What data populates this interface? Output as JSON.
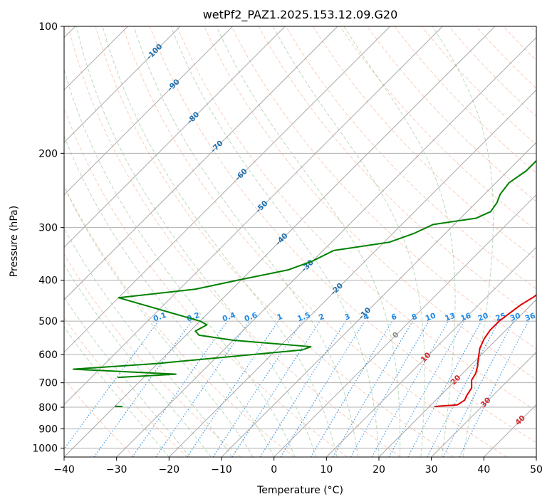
{
  "chart_data": {
    "type": "skew-t",
    "title": "wetPf2_PAZ1.2025.153.12.09.G20",
    "xlabel": "Temperature (°C)",
    "ylabel": "Pressure (hPa)",
    "xlim": [
      -40,
      50
    ],
    "ylim": [
      1050,
      100
    ],
    "y_scale": "log",
    "grid": true,
    "x_ticks": [
      -40,
      -30,
      -20,
      -10,
      0,
      10,
      20,
      30,
      40,
      50
    ],
    "x_tick_labels": [
      "−40",
      "−30",
      "−20",
      "−10",
      "0",
      "10",
      "20",
      "30",
      "40",
      "50"
    ],
    "y_ticks": [
      100,
      200,
      300,
      400,
      500,
      600,
      700,
      800,
      900,
      1000
    ],
    "y_tick_labels": [
      "100",
      "200",
      "300",
      "400",
      "500",
      "600",
      "700",
      "800",
      "900",
      "1000"
    ],
    "isotherm_labels": {
      "color": "#1f6fae",
      "items": [
        {
          "text": "-100",
          "p": 115
        },
        {
          "text": "-90",
          "p": 138
        },
        {
          "text": "-80",
          "p": 165
        },
        {
          "text": "-70",
          "p": 193
        },
        {
          "text": "-60",
          "p": 225
        },
        {
          "text": "-50",
          "p": 268
        },
        {
          "text": "-40",
          "p": 320
        },
        {
          "text": "-30",
          "p": 370
        },
        {
          "text": "-20",
          "p": 420
        },
        {
          "text": "-10",
          "p": 480
        }
      ]
    },
    "isotherm_labels_positive": {
      "color": "#d62728",
      "items": [
        {
          "text": "0",
          "p": 540,
          "color": "#888888"
        },
        {
          "text": "10",
          "p": 610
        },
        {
          "text": "20",
          "p": 690
        },
        {
          "text": "30",
          "p": 780
        },
        {
          "text": "40",
          "p": 860
        }
      ]
    },
    "mixing_ratio_labels": {
      "color": "#1e88e5",
      "items": [
        "0.1",
        "0.2",
        "0.4",
        "0.6",
        "1",
        "1.5",
        "2",
        "3",
        "4",
        "6",
        "8",
        "10",
        "13",
        "16",
        "20",
        "25",
        "30",
        "36"
      ]
    },
    "series": [
      {
        "name": "Temperature",
        "color": "#e00000",
        "points": [
          [
            7.5,
            100
          ],
          [
            4,
            108
          ],
          [
            2.8,
            118
          ],
          [
            3.5,
            130
          ],
          [
            5.5,
            140
          ],
          [
            6.5,
            152
          ],
          [
            6.5,
            165
          ],
          [
            5.5,
            178
          ],
          [
            5.8,
            188
          ],
          [
            7.5,
            200
          ],
          [
            9.5,
            215
          ],
          [
            11.5,
            235
          ],
          [
            12.5,
            255
          ],
          [
            13,
            270
          ],
          [
            14,
            290
          ],
          [
            15,
            305
          ],
          [
            16,
            325
          ],
          [
            17,
            345
          ],
          [
            18.2,
            362
          ],
          [
            18.5,
            380
          ],
          [
            19,
            398
          ],
          [
            19.3,
            418
          ],
          [
            19,
            438
          ],
          [
            18,
            458
          ],
          [
            17.5,
            478
          ],
          [
            17,
            500
          ],
          [
            17,
            525
          ],
          [
            17.5,
            550
          ],
          [
            18.5,
            580
          ],
          [
            20,
            610
          ],
          [
            21.5,
            640
          ],
          [
            22.5,
            665
          ],
          [
            23,
            690
          ],
          [
            24.5,
            720
          ],
          [
            25,
            750
          ],
          [
            25.5,
            770
          ],
          [
            25,
            790
          ],
          [
            22,
            795
          ],
          [
            21,
            797
          ]
        ]
      },
      {
        "name": "Dewpoint",
        "color": "#008000",
        "points": [
          [
            0.2,
            100
          ],
          [
            0,
            110
          ],
          [
            0.3,
            125
          ],
          [
            -1,
            140
          ],
          [
            -3,
            155
          ],
          [
            -4.5,
            170
          ],
          [
            -3.5,
            182
          ],
          [
            -5,
            195
          ],
          [
            -6.5,
            205
          ],
          [
            -6.5,
            220
          ],
          [
            -7.5,
            235
          ],
          [
            -7,
            250
          ],
          [
            -6,
            262
          ],
          [
            -5.5,
            275
          ],
          [
            -7,
            285
          ],
          [
            -14,
            295
          ],
          [
            -16,
            310
          ],
          [
            -19,
            325
          ],
          [
            -28,
            340
          ],
          [
            -30,
            360
          ],
          [
            -33,
            378
          ],
          [
            -40,
            398
          ],
          [
            -47,
            420
          ],
          [
            -60,
            440
          ],
          [
            -40,
            500
          ],
          [
            -38,
            510
          ],
          [
            -39,
            528
          ],
          [
            -37.5,
            540
          ],
          [
            -30,
            555
          ],
          [
            -14,
            575
          ],
          [
            -15,
            585
          ],
          [
            -40,
            630
          ],
          [
            -55,
            650
          ],
          [
            -34.5,
            668
          ],
          [
            -45,
            680
          ]
        ]
      },
      {
        "name": "Dewpoint surface",
        "color": "#008000",
        "points": [
          [
            -40,
            796
          ],
          [
            -38.5,
            797
          ]
        ]
      }
    ]
  }
}
